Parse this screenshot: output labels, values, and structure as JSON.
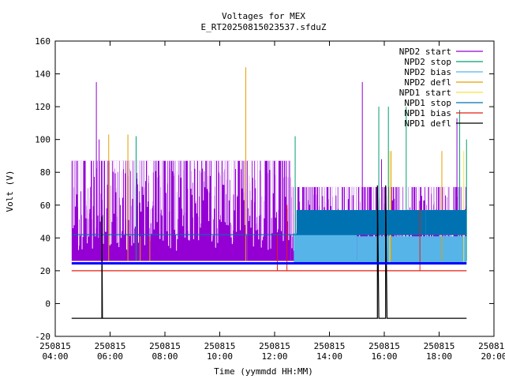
{
  "chart_data": {
    "type": "line",
    "title": "Voltages for MEX",
    "subtitle": "E_RT20250815023537.sfduZ",
    "xlabel": "Time (yymmdd HH:MM)",
    "ylabel": "Volt (V)",
    "x_ticks": [
      {
        "date": "250815",
        "time": "04:00",
        "hour": 4
      },
      {
        "date": "250815",
        "time": "06:00",
        "hour": 6
      },
      {
        "date": "250815",
        "time": "08:00",
        "hour": 8
      },
      {
        "date": "250815",
        "time": "10:00",
        "hour": 10
      },
      {
        "date": "250815",
        "time": "12:00",
        "hour": 12
      },
      {
        "date": "250815",
        "time": "14:00",
        "hour": 14
      },
      {
        "date": "250815",
        "time": "16:00",
        "hour": 16
      },
      {
        "date": "250815",
        "time": "18:00",
        "hour": 18
      },
      {
        "date": "250815",
        "time": "20:00",
        "hour": 20
      }
    ],
    "y_ticks": [
      "-20",
      "0",
      "20",
      "40",
      "60",
      "80",
      "100",
      "120",
      "140",
      "160"
    ],
    "xlim": [
      4,
      20
    ],
    "ylim": [
      -20,
      160
    ],
    "grid": false,
    "legend_position": "top-right",
    "series": [
      {
        "name": "NPD2 start",
        "color": "#9400d3",
        "bands": [
          {
            "start": 4.6,
            "end": 8.0,
            "low": 26,
            "high": 87
          },
          {
            "start": 8.0,
            "end": 11.0,
            "low": 26,
            "high": 87
          },
          {
            "start": 11.0,
            "end": 12.6,
            "low": 26,
            "high": 87
          },
          {
            "start": 12.6,
            "end": 14.5,
            "low": 26,
            "high": 71
          },
          {
            "start": 14.5,
            "end": 17.0,
            "low": 26,
            "high": 71
          },
          {
            "start": 17.0,
            "end": 19.0,
            "low": 26,
            "high": 71
          }
        ],
        "spikes": [
          {
            "x": 5.5,
            "y": 135
          },
          {
            "x": 5.6,
            "y": 100
          },
          {
            "x": 15.2,
            "y": 135
          },
          {
            "x": 15.9,
            "y": 88
          },
          {
            "x": 18.65,
            "y": 113
          }
        ]
      },
      {
        "name": "NPD2 stop",
        "color": "#009e73",
        "spikes": [
          {
            "x": 6.95,
            "y": 102
          },
          {
            "x": 12.75,
            "y": 102
          },
          {
            "x": 15.8,
            "y": 120
          },
          {
            "x": 16.15,
            "y": 120
          },
          {
            "x": 16.8,
            "y": 120
          },
          {
            "x": 18.75,
            "y": 118
          },
          {
            "x": 19.0,
            "y": 100
          }
        ]
      },
      {
        "name": "NPD2 bias",
        "color": "#56b4e9",
        "bands": [
          {
            "start": 12.7,
            "end": 15.0,
            "low": 24,
            "high": 43
          },
          {
            "start": 15.0,
            "end": 19.0,
            "low": 24,
            "high": 41
          }
        ]
      },
      {
        "name": "NPD2 defl",
        "color": "#e69f00",
        "spikes": [
          {
            "x": 5.95,
            "y": 103
          },
          {
            "x": 6.65,
            "y": 103
          },
          {
            "x": 7.1,
            "y": 41
          },
          {
            "x": 7.45,
            "y": 41
          },
          {
            "x": 10.95,
            "y": 144
          },
          {
            "x": 16.25,
            "y": 93
          },
          {
            "x": 18.1,
            "y": 93
          }
        ]
      },
      {
        "name": "NPD1 start",
        "color": "#f0e442",
        "points": [
          [
            4.6,
            24.5
          ],
          [
            19.0,
            24.5
          ]
        ],
        "spikes": [
          {
            "x": 16.2,
            "y": 93
          },
          {
            "x": 18.9,
            "y": 93
          }
        ]
      },
      {
        "name": "NPD1 stop",
        "color": "#0072b2",
        "points": [
          [
            4.6,
            42
          ],
          [
            19.0,
            42
          ]
        ],
        "bands": [
          {
            "start": 12.8,
            "end": 17.5,
            "low": 42,
            "high": 57
          },
          {
            "start": 17.5,
            "end": 19.0,
            "low": 42,
            "high": 57
          }
        ]
      },
      {
        "name": "NPD1 bias",
        "color": "#e51e10",
        "points": [
          [
            4.6,
            20
          ],
          [
            19.0,
            20
          ]
        ],
        "spikes": [
          {
            "x": 12.1,
            "y": 42
          },
          {
            "x": 12.45,
            "y": 60
          },
          {
            "x": 17.3,
            "y": 58
          }
        ]
      },
      {
        "name": "NPD1 defl",
        "color": "#000000",
        "points": [
          [
            4.6,
            -9
          ],
          [
            5.7,
            -9
          ],
          [
            5.7,
            53
          ],
          [
            5.72,
            -9
          ],
          [
            15.75,
            -9
          ],
          [
            15.75,
            72
          ],
          [
            15.8,
            -9
          ],
          [
            16.05,
            -9
          ],
          [
            16.05,
            72
          ],
          [
            16.1,
            -9
          ],
          [
            19.0,
            -9
          ]
        ]
      }
    ],
    "baseline": {
      "name": "",
      "color": "#0000ff",
      "y": 24.5
    }
  }
}
